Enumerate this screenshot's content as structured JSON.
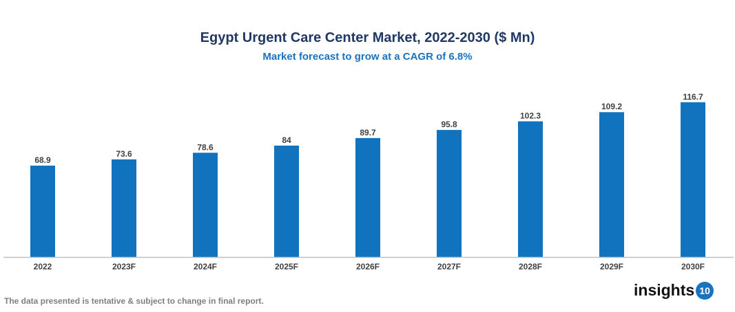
{
  "chart_data": {
    "type": "bar",
    "title": "Egypt Urgent Care Center Market, 2022-2030 ($ Mn)",
    "subtitle": "Market forecast to grow at a CAGR of 6.8%",
    "categories": [
      "2022",
      "2023F",
      "2024F",
      "2025F",
      "2026F",
      "2027F",
      "2028F",
      "2029F",
      "2030F"
    ],
    "values": [
      68.9,
      73.6,
      78.6,
      84,
      89.7,
      95.8,
      102.3,
      109.2,
      116.7
    ],
    "value_labels": [
      "68.9",
      "73.6",
      "78.6",
      "84",
      "89.7",
      "95.8",
      "102.3",
      "109.2",
      "116.7"
    ],
    "xlabel": "",
    "ylabel": "",
    "ylim": [
      0,
      125
    ],
    "grid": false,
    "bar_color": "#1172bd"
  },
  "footer": {
    "note": "The data presented is tentative & subject to change in final report."
  },
  "logo": {
    "text": "insights",
    "badge": "10"
  }
}
